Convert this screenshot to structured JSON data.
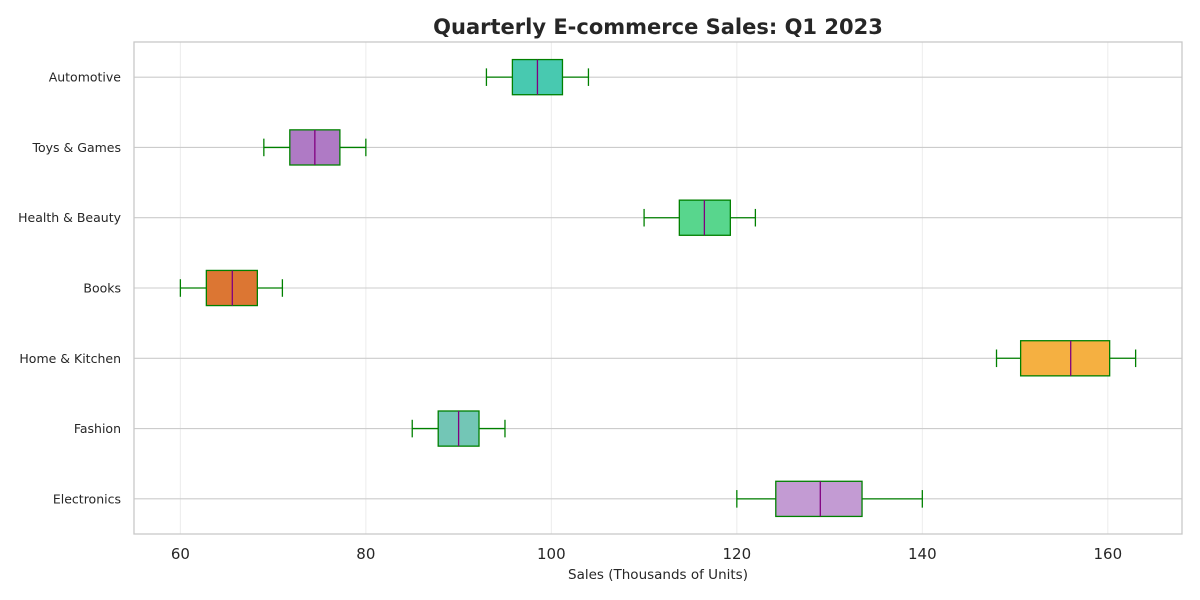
{
  "chart_data": {
    "type": "boxplot",
    "orientation": "horizontal",
    "title": "Quarterly E-commerce Sales: Q1 2023",
    "xlabel": "Sales (Thousands of Units)",
    "ylabel": "",
    "xlim": [
      55,
      168
    ],
    "xticks": [
      60,
      80,
      100,
      120,
      140,
      160
    ],
    "grid": true,
    "colors": {
      "whisker": "#008000",
      "box_edge": "#008000",
      "median": "#800080",
      "grid": "#cccccc",
      "frame": "#c8c8c8",
      "text": "#262626"
    },
    "categories": [
      {
        "name": "Electronics",
        "whisker_low": 120,
        "q1": 124.2,
        "median": 129,
        "q3": 133.5,
        "whisker_high": 140,
        "color": "#c39bd3"
      },
      {
        "name": "Fashion",
        "whisker_low": 85,
        "q1": 87.8,
        "median": 90,
        "q3": 92.2,
        "whisker_high": 95,
        "color": "#73c6b6"
      },
      {
        "name": "Home & Kitchen",
        "whisker_low": 148,
        "q1": 150.6,
        "median": 156,
        "q3": 160.2,
        "whisker_high": 163,
        "color": "#f5b041"
      },
      {
        "name": "Books",
        "whisker_low": 60,
        "q1": 62.8,
        "median": 65.6,
        "q3": 68.3,
        "whisker_high": 71,
        "color": "#dc7633"
      },
      {
        "name": "Health & Beauty",
        "whisker_low": 110,
        "q1": 113.8,
        "median": 116.5,
        "q3": 119.3,
        "whisker_high": 122,
        "color": "#58d68d"
      },
      {
        "name": "Toys & Games",
        "whisker_low": 69,
        "q1": 71.8,
        "median": 74.5,
        "q3": 77.2,
        "whisker_high": 80,
        "color": "#af7ac5"
      },
      {
        "name": "Automotive",
        "whisker_low": 93,
        "q1": 95.8,
        "median": 98.5,
        "q3": 101.2,
        "whisker_high": 104,
        "color": "#48c9b0"
      }
    ]
  }
}
